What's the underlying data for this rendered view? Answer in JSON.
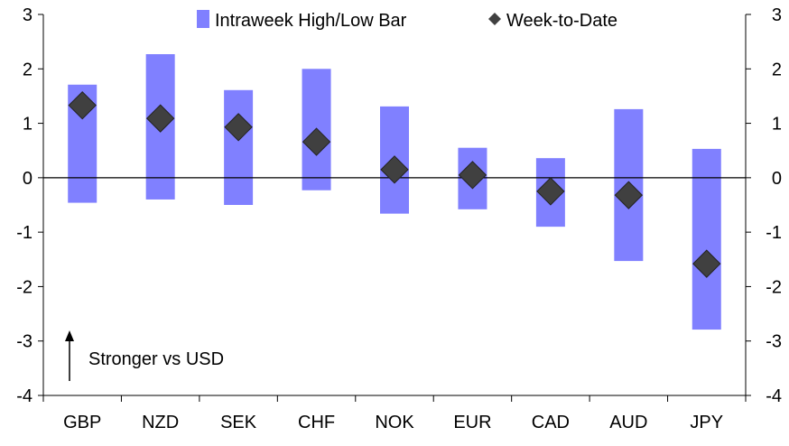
{
  "chart_data": {
    "type": "bar",
    "title": "",
    "xlabel": "",
    "ylabel": "",
    "ylim": [
      -4,
      3
    ],
    "yticks": [
      "3",
      "2",
      "1",
      "0",
      "-1",
      "-2",
      "-3",
      "-4"
    ],
    "grid": false,
    "legend_placement": "top",
    "categories": [
      "GBP",
      "NZD",
      "SEK",
      "CHF",
      "NOK",
      "EUR",
      "CAD",
      "AUD",
      "JPY"
    ],
    "series": [
      {
        "name": "Intraweek High/Low Bar",
        "type": "floating-bar",
        "color": "#8080ff",
        "high": [
          1.71,
          2.27,
          1.61,
          2.0,
          1.31,
          0.55,
          0.36,
          1.26,
          0.53
        ],
        "low": [
          -0.46,
          -0.4,
          -0.5,
          -0.23,
          -0.66,
          -0.58,
          -0.9,
          -1.53,
          -2.79
        ]
      },
      {
        "name": "Week-to-Date",
        "type": "scatter",
        "color": "#404040",
        "values": [
          1.33,
          1.09,
          0.93,
          0.66,
          0.15,
          0.05,
          -0.25,
          -0.32,
          -1.58
        ]
      }
    ],
    "annotation": "Stronger vs USD"
  }
}
